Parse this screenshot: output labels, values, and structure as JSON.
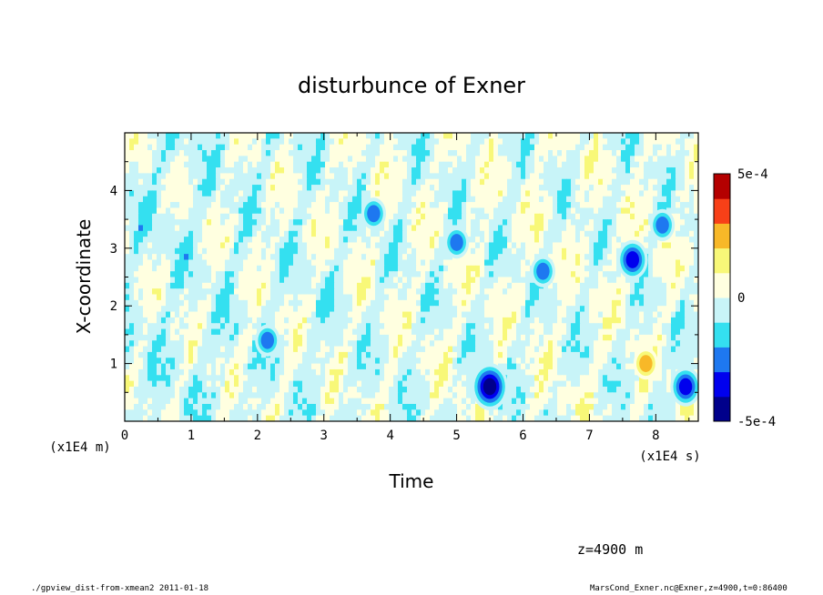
{
  "chart_data": {
    "type": "heatmap",
    "title": "disturbunce of Exner",
    "xlabel": "Time",
    "ylabel": "X-coordinate",
    "x_scale_label": "(x1E4 s)",
    "y_scale_label": "(x1E4 m)",
    "xlim": [
      0,
      8.64
    ],
    "ylim": [
      0,
      5
    ],
    "x_ticks": [
      "0",
      "1",
      "2",
      "3",
      "4",
      "5",
      "6",
      "7",
      "8"
    ],
    "y_ticks": [
      "1",
      "2",
      "3",
      "4"
    ],
    "colorbar": {
      "range": [
        -0.0005,
        0.0005
      ],
      "labels": [
        "5e-4",
        "0",
        "-5e-4"
      ],
      "levels": [
        -0.0005,
        -0.0004,
        -0.0003,
        -0.0002,
        -0.0001,
        0,
        0.0001,
        0.0002,
        0.0003,
        0.0004,
        0.0005
      ],
      "colors": [
        "#00008b",
        "#0000ee",
        "#1e78f0",
        "#34e0f0",
        "#c8f4f8",
        "#ffffe0",
        "#f8f878",
        "#f8b828",
        "#f84018",
        "#b40000"
      ]
    },
    "features": [
      {
        "x": 5.5,
        "y": 0.6,
        "value": -0.00045
      },
      {
        "x": 8.45,
        "y": 0.6,
        "value": -0.00042
      },
      {
        "x": 5.0,
        "y": 3.1,
        "value": -0.00032
      },
      {
        "x": 7.65,
        "y": 2.8,
        "value": -0.00035
      },
      {
        "x": 6.3,
        "y": 2.6,
        "value": -0.0003
      },
      {
        "x": 7.85,
        "y": 1.0,
        "value": 0.00028
      },
      {
        "x": 3.75,
        "y": 3.6,
        "value": -0.0003
      },
      {
        "x": 2.15,
        "y": 1.4,
        "value": -0.00028
      },
      {
        "x": 8.1,
        "y": 3.4,
        "value": -0.00028
      }
    ]
  },
  "annotation": "z=4900  m",
  "footer_left": "./gpview_dist-from-xmean2  2011-01-18",
  "footer_right": "MarsCond_Exner.nc@Exner,z=4900,t=0:86400"
}
